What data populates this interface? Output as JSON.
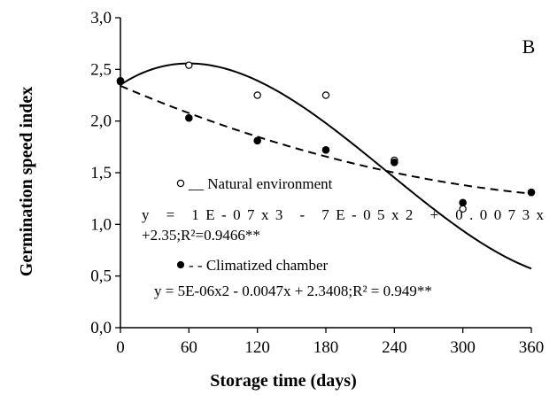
{
  "chart_data": {
    "type": "scatter",
    "panel_label": "B",
    "xlabel": "Storage time (days)",
    "ylabel": "Germination  speed index",
    "xlim": [
      0,
      360
    ],
    "ylim": [
      0.0,
      3.0
    ],
    "x_ticks": [
      0,
      60,
      120,
      180,
      240,
      300,
      360
    ],
    "y_ticks": [
      0.0,
      0.5,
      1.0,
      1.5,
      2.0,
      2.5,
      3.0
    ],
    "y_tick_labels": [
      "0,0",
      "0,5",
      "1,0",
      "1,5",
      "2,0",
      "2,5",
      "3,0"
    ],
    "grid": false,
    "series": [
      {
        "name": "Natural environment",
        "legend_text": "__ Natural environment",
        "marker": "open-circle",
        "line": "solid",
        "x": [
          0,
          60,
          120,
          180,
          240,
          300,
          360
        ],
        "y": [
          2.38,
          2.54,
          2.25,
          2.25,
          1.62,
          1.15,
          1.31
        ],
        "fit": {
          "a3": 1e-07,
          "a2": -7e-05,
          "a1": 0.0073,
          "a0": 2.35
        },
        "equation_line1": "y  =  1E-07x3  -  7E-05x2  +  0.0073x",
        "equation_line2": "+2.35;R²=0.9466**"
      },
      {
        "name": "Climatized chamber",
        "legend_text": "- - Climatized chamber",
        "marker": "filled-circle",
        "line": "dashed",
        "x": [
          0,
          60,
          120,
          180,
          240,
          300,
          360
        ],
        "y": [
          2.39,
          2.03,
          1.81,
          1.72,
          1.6,
          1.21,
          1.31
        ],
        "fit": {
          "a3": 0,
          "a2": 5e-06,
          "a1": -0.0047,
          "a0": 2.3408
        },
        "equation_line1": "y = 5E-06x2 - 0.0047x + 2.3408;R² = 0.949**"
      }
    ],
    "colors": {
      "axis": "#000000",
      "markers": "#000000",
      "background": "#ffffff"
    }
  }
}
